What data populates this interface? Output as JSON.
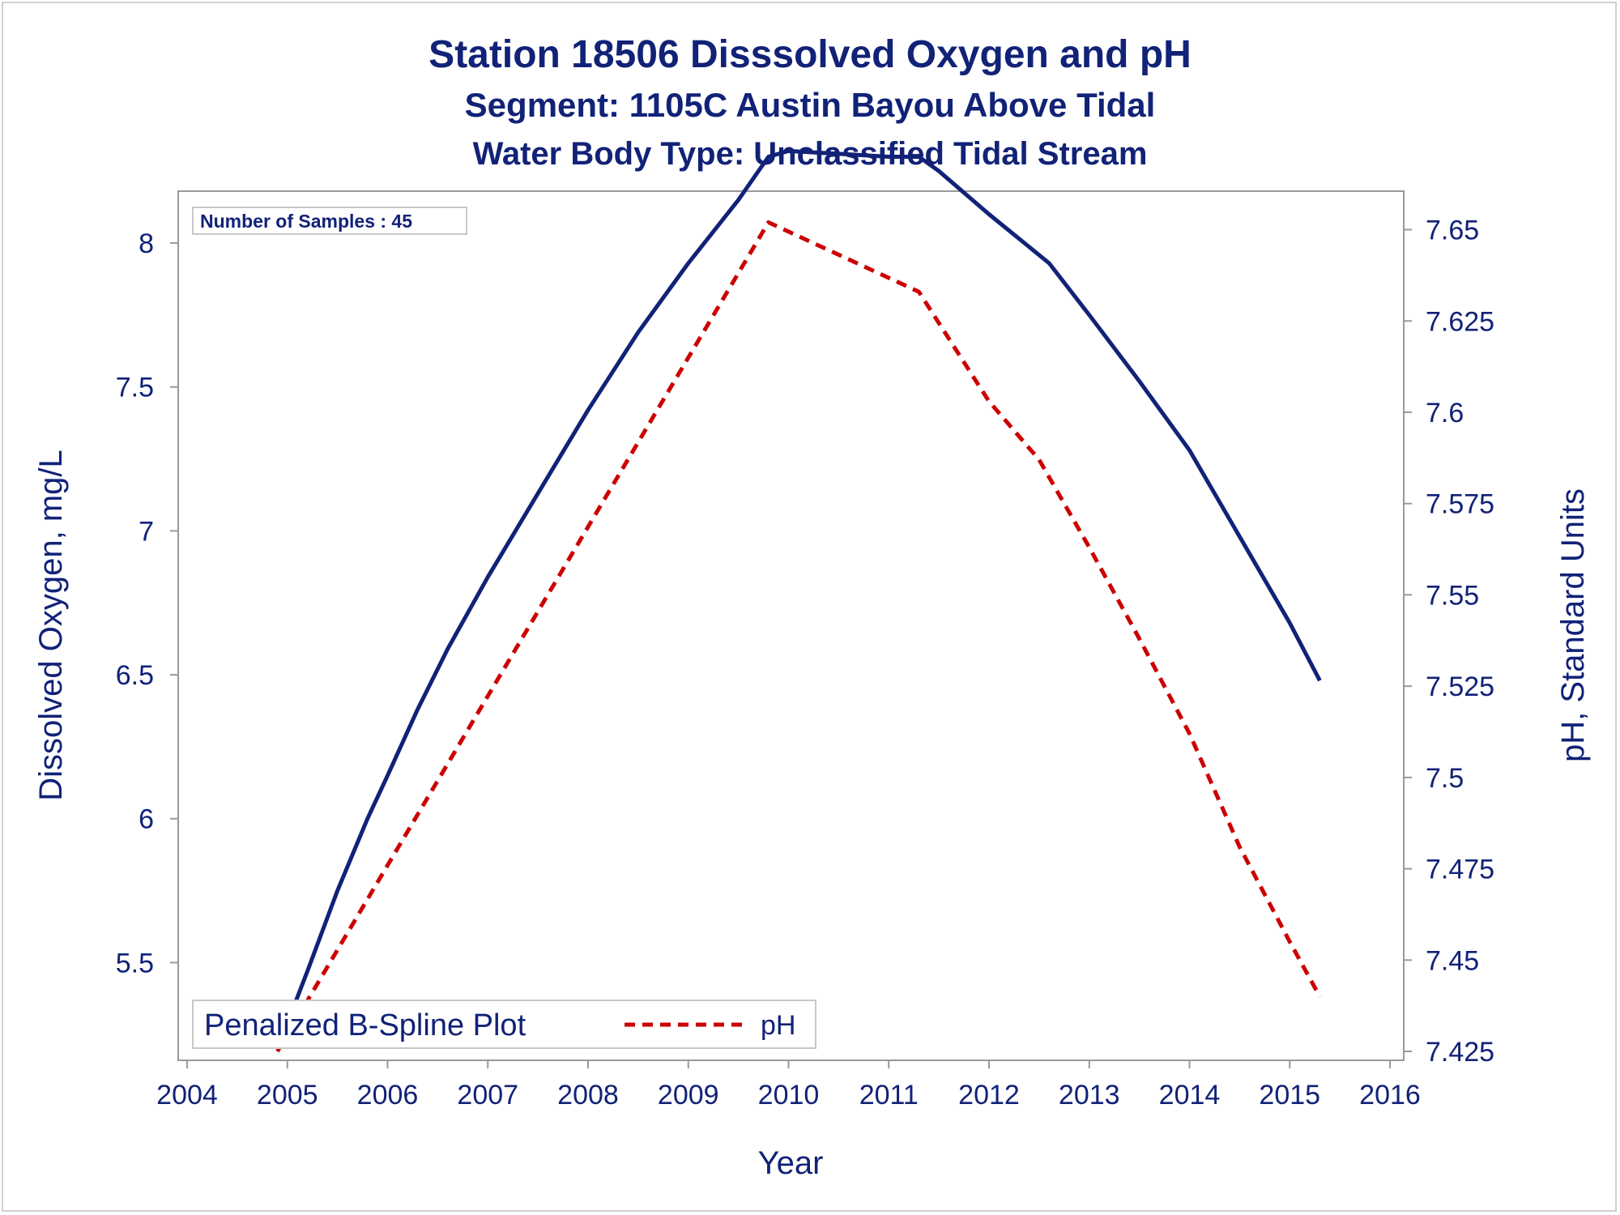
{
  "titles": {
    "line1": "Station 18506   Disssolved Oxygen and pH",
    "line2": "Segment: 1105C  Austin Bayou Above Tidal",
    "line3": "Water Body Type: Unclassified Tidal Stream"
  },
  "chart_data": {
    "type": "line",
    "xlabel": "Year",
    "ylabel": "Dissolved Oxygen, mg/L",
    "y2label": "pH, Standard Units",
    "xlim": [
      2004,
      2016
    ],
    "ylim": [
      5.2,
      8.2
    ],
    "y2lim": [
      7.425,
      7.655
    ],
    "x_ticks": [
      2004,
      2005,
      2006,
      2007,
      2008,
      2009,
      2010,
      2011,
      2012,
      2013,
      2014,
      2015,
      2016
    ],
    "y_ticks": [
      5.5,
      6,
      6.5,
      7,
      7.5,
      8
    ],
    "y2_ticks": [
      7.425,
      7.45,
      7.475,
      7.5,
      7.525,
      7.55,
      7.575,
      7.6,
      7.625,
      7.65
    ],
    "annotation": "Number of Samples : 45",
    "legend": {
      "title": "Penalized B-Spline Plot",
      "position": "bottom-left"
    },
    "series": [
      {
        "name": "",
        "axis": "left",
        "style": "solid",
        "color": "#112277",
        "x": [
          2004.9,
          2005.2,
          2005.5,
          2005.8,
          2006.0,
          2006.3,
          2006.6,
          2007.0,
          2007.5,
          2008.0,
          2008.5,
          2009.0,
          2009.5,
          2009.8,
          2010.0,
          2010.5,
          2011.0,
          2011.3,
          2011.5,
          2012.0,
          2012.6,
          2013.0,
          2013.5,
          2014.0,
          2014.5,
          2015.0,
          2015.3
        ],
        "values": [
          5.2,
          5.47,
          5.75,
          6.0,
          6.15,
          6.38,
          6.59,
          6.84,
          7.13,
          7.42,
          7.69,
          7.93,
          8.15,
          8.3,
          8.32,
          8.31,
          8.3,
          8.3,
          8.25,
          8.1,
          7.93,
          7.75,
          7.52,
          7.28,
          6.98,
          6.68,
          6.48
        ]
      },
      {
        "name": "pH",
        "axis": "right",
        "style": "dashed",
        "color": "#cc0000",
        "x": [
          2004.9,
          2009.8,
          2011.3,
          2012.0,
          2012.5,
          2013.0,
          2013.5,
          2014.0,
          2014.5,
          2015.0,
          2015.3
        ],
        "values": [
          7.425,
          7.652,
          7.633,
          7.603,
          7.587,
          7.563,
          7.538,
          7.512,
          7.481,
          7.455,
          7.44
        ]
      }
    ]
  }
}
